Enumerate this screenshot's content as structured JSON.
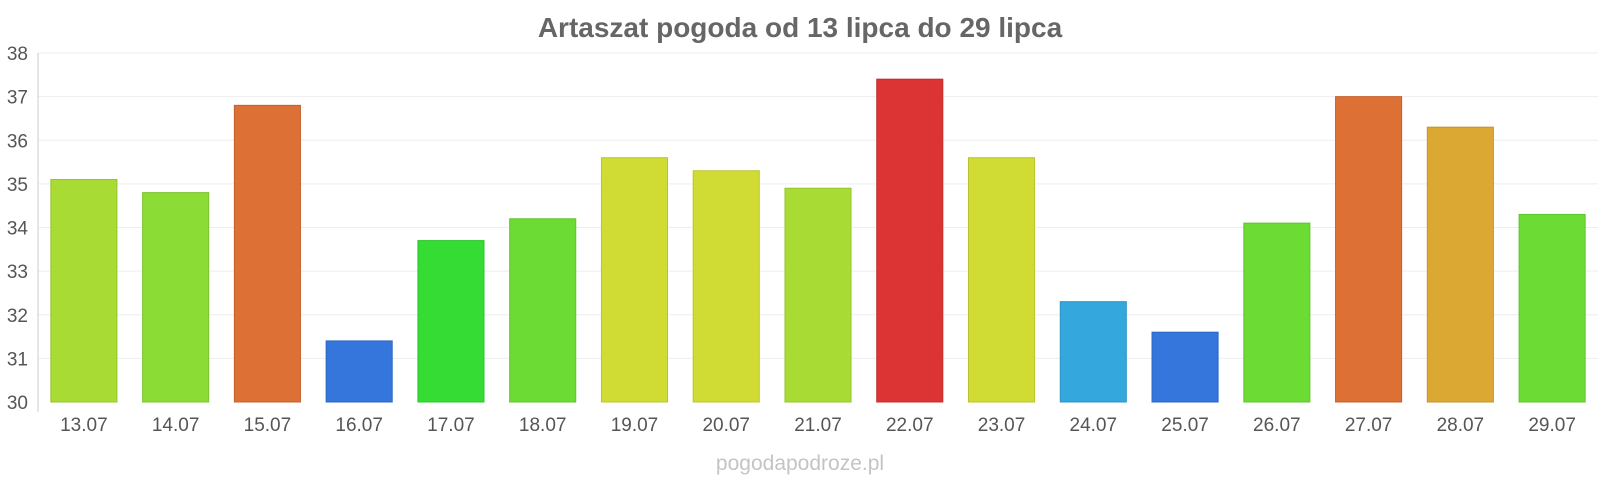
{
  "chart_data": {
    "type": "bar",
    "title": "Artaszat pogoda od 13 lipca do 29 lipca",
    "xlabel": "",
    "ylabel": "",
    "ylim": [
      30,
      38
    ],
    "yticks": [
      30,
      31,
      32,
      33,
      34,
      35,
      36,
      37,
      38
    ],
    "grid": true,
    "legend": "none",
    "categories": [
      "13.07",
      "14.07",
      "15.07",
      "16.07",
      "17.07",
      "18.07",
      "19.07",
      "20.07",
      "21.07",
      "22.07",
      "23.07",
      "24.07",
      "25.07",
      "26.07",
      "27.07",
      "28.07",
      "29.07"
    ],
    "values": [
      35.1,
      34.8,
      36.8,
      31.4,
      33.7,
      34.2,
      35.6,
      35.3,
      34.9,
      37.4,
      35.6,
      32.3,
      31.6,
      34.1,
      37.0,
      36.3,
      34.3
    ],
    "colors": [
      "#a8dc34",
      "#8bdc34",
      "#dd7034",
      "#3476dc",
      "#34dc34",
      "#6cdc34",
      "#d0dc34",
      "#d0dc34",
      "#a8dc34",
      "#dc3434",
      "#d0dc34",
      "#34a8dc",
      "#3476dc",
      "#6cdc34",
      "#dd7034",
      "#dca834",
      "#6cdc34"
    ],
    "stroke_colors": [
      "#95c42d",
      "#7bc42d",
      "#c4602c",
      "#2c66c4",
      "#2cc42c",
      "#5fc42d",
      "#b9c42d",
      "#b9c42d",
      "#95c42d",
      "#c42c2c",
      "#b9c42d",
      "#2d95c4",
      "#2c66c4",
      "#5fc42d",
      "#c4602c",
      "#c4952d",
      "#5fc42d"
    ]
  },
  "footer": {
    "watermark": "pogodapodroze.pl"
  }
}
